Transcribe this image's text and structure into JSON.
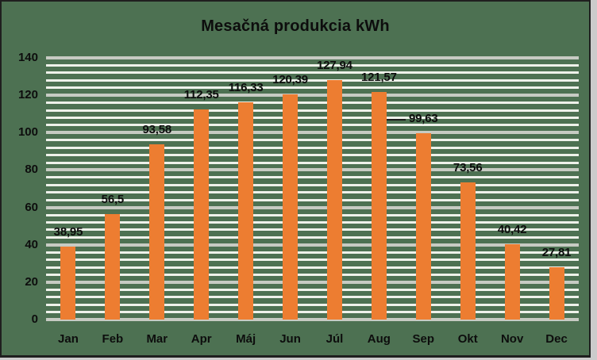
{
  "chart_data": {
    "type": "bar",
    "title": "Mesačná produkcia kWh",
    "categories": [
      "Jan",
      "Feb",
      "Mar",
      "Apr",
      "Máj",
      "Jun",
      "Júl",
      "Aug",
      "Sep",
      "Okt",
      "Nov",
      "Dec"
    ],
    "values": [
      38.95,
      56.5,
      93.58,
      112.35,
      116.33,
      120.39,
      127.94,
      121.57,
      99.63,
      73.56,
      40.42,
      27.81
    ],
    "value_labels": [
      "38,95",
      "56,5",
      "93,58",
      "112,35",
      "116,33",
      "120,39",
      "127,94",
      "121,57",
      "99,63",
      "73,56",
      "40,42",
      "27,81"
    ],
    "xlabel": "",
    "ylabel": "",
    "ylim": [
      0,
      140
    ],
    "y_ticks": [
      0,
      20,
      40,
      60,
      80,
      100,
      120,
      140
    ],
    "y_minor_unit": 4,
    "legend": "none",
    "grid": "horizontal major+minor",
    "labels_with_leader_line": [
      "Sep"
    ],
    "colors": {
      "bar": "#ED7D31",
      "plot_background": "#4D7152",
      "major_gridline": "#C7CBC3",
      "minor_gridline": "#EEF1EA",
      "text": "#0D0D0D",
      "chart_border": "#1F1F1F",
      "page_background": "#CBCBCB"
    }
  }
}
